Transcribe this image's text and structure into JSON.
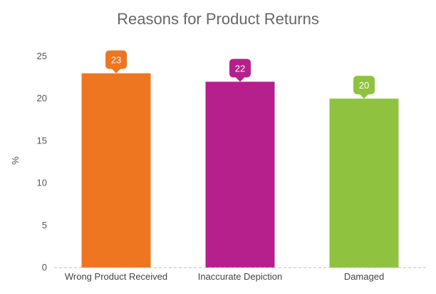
{
  "chart_data": {
    "type": "bar",
    "title": "Reasons for Product Returns",
    "xlabel": "",
    "ylabel": "%",
    "ylim": [
      0,
      25
    ],
    "yticks": [
      0,
      5,
      10,
      15,
      20,
      25
    ],
    "grid": false,
    "legend": "none",
    "categories": [
      "Wrong Product Received",
      "Inaccurate Depiction",
      "Damaged"
    ],
    "values": [
      23,
      22,
      20
    ],
    "colors": [
      "#ee7621",
      "#b5208c",
      "#8fc33f"
    ],
    "data_labels": [
      "23",
      "22",
      "20"
    ],
    "baseline_style": "dashed"
  }
}
